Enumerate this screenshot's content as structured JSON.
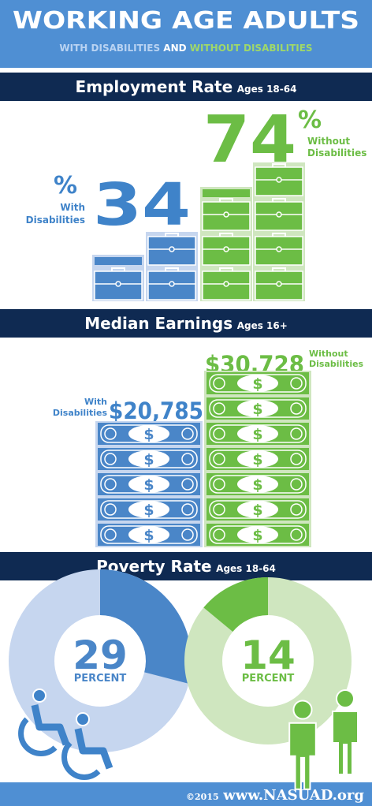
{
  "header": {
    "title": "WORKING AGE ADULTS",
    "subtitle": {
      "with": "WITH DISABILITIES",
      "and": "AND",
      "without": "WITHOUT DISABILITIES"
    }
  },
  "employment": {
    "title": "Employment Rate",
    "ages": "Ages 18-64",
    "unit": "%",
    "with": {
      "value": 34,
      "label": [
        "With",
        "Disabilities"
      ]
    },
    "without": {
      "value": 74,
      "label": [
        "Without",
        "Disabilities"
      ]
    }
  },
  "earnings": {
    "title": "Median Earnings",
    "ages": "Ages 16+",
    "symbol": "$",
    "with": {
      "value": "$20,785",
      "label": [
        "With",
        "Disabilities"
      ]
    },
    "without": {
      "value": "$30,728",
      "label": [
        "Without",
        "Disabilities"
      ]
    }
  },
  "poverty": {
    "title": "Poverty Rate",
    "ages": "Ages 18-64",
    "unit": "PERCENT",
    "with": {
      "value": 29
    },
    "without": {
      "value": 14
    }
  },
  "footer": {
    "copyright": "©2015",
    "site": "www.NASUAD.org"
  }
}
